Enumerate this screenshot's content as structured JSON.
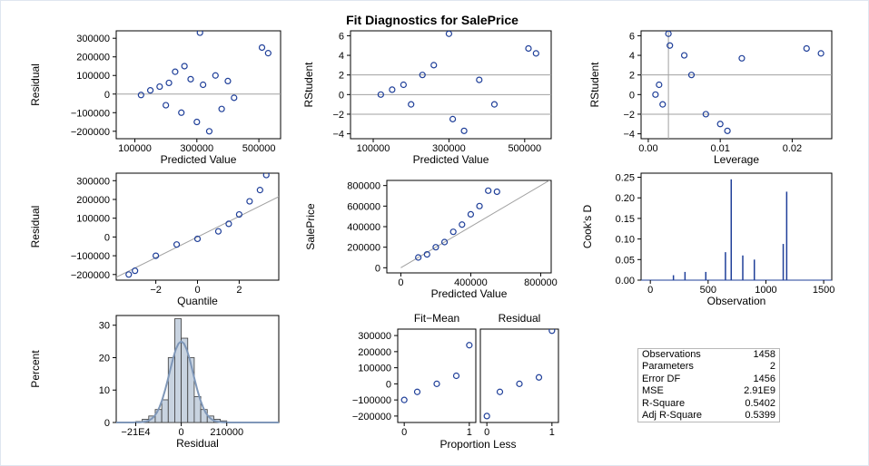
{
  "title": "Fit Diagnostics for SalePrice",
  "colors": {
    "marker": "#1f3f99",
    "ref": "#a0a0a0",
    "hist": "#c8d3e0",
    "curve": "#7f97b8"
  },
  "panels": {
    "p1": {
      "ylabel": "Residual",
      "xlabel": "Predicted Value",
      "xticks": [
        "100000",
        "300000",
        "500000"
      ],
      "yticks": [
        "300000",
        "200000",
        "100000",
        "0",
        "−100000",
        "−200000"
      ]
    },
    "p2": {
      "ylabel": "RStudent",
      "xlabel": "Predicted Value",
      "xticks": [
        "100000",
        "300000",
        "500000"
      ],
      "yticks": [
        "6",
        "4",
        "2",
        "0",
        "−2",
        "−4"
      ]
    },
    "p3": {
      "ylabel": "RStudent",
      "xlabel": "Leverage",
      "xticks": [
        "0.00",
        "0.01",
        "0.02"
      ],
      "yticks": [
        "6",
        "4",
        "2",
        "0",
        "−2",
        "−4"
      ]
    },
    "p4": {
      "ylabel": "Residual",
      "xlabel": "Quantile",
      "xticks": [
        "−2",
        "0",
        "2"
      ],
      "yticks": [
        "300000",
        "200000",
        "100000",
        "0",
        "−100000",
        "−200000"
      ]
    },
    "p5": {
      "ylabel": "SalePrice",
      "xlabel": "Predicted Value",
      "xticks": [
        "0",
        "400000",
        "800000"
      ],
      "yticks": [
        "800000",
        "600000",
        "400000",
        "200000",
        "0"
      ]
    },
    "p6": {
      "ylabel": "Cook's D",
      "xlabel": "Observation",
      "xticks": [
        "0",
        "500",
        "1000",
        "1500"
      ],
      "yticks": [
        "0.25",
        "0.20",
        "0.15",
        "0.10",
        "0.05",
        "0.00"
      ]
    },
    "p7": {
      "ylabel": "Percent",
      "xlabel": "Residual",
      "xticks": [
        "−21E4",
        "0",
        "210000"
      ],
      "yticks": [
        "30",
        "20",
        "10",
        "0"
      ]
    },
    "p8": {
      "xlabel": "Proportion Less",
      "label_left": "Fit−Mean",
      "label_right": "Residual",
      "xticks": [
        "0",
        "1"
      ],
      "yticks": [
        "300000",
        "200000",
        "100000",
        "0",
        "−100000",
        "−200000"
      ]
    }
  },
  "stats": [
    {
      "label": "Observations",
      "value": "1458"
    },
    {
      "label": "Parameters",
      "value": "2"
    },
    {
      "label": "Error DF",
      "value": "1456"
    },
    {
      "label": "MSE",
      "value": "2.91E9"
    },
    {
      "label": "R-Square",
      "value": "0.5402"
    },
    {
      "label": "Adj R-Square",
      "value": "0.5399"
    }
  ],
  "chart_data": [
    {
      "type": "scatter",
      "xlabel": "Predicted Value",
      "ylabel": "Residual",
      "xlim": [
        40000,
        570000
      ],
      "ylim": [
        -240000,
        340000
      ],
      "ref_y": 0,
      "points": [
        [
          120000,
          -5000
        ],
        [
          150000,
          20000
        ],
        [
          180000,
          40000
        ],
        [
          200000,
          -60000
        ],
        [
          210000,
          60000
        ],
        [
          230000,
          120000
        ],
        [
          250000,
          -100000
        ],
        [
          260000,
          150000
        ],
        [
          280000,
          80000
        ],
        [
          300000,
          -150000
        ],
        [
          310000,
          330000
        ],
        [
          320000,
          50000
        ],
        [
          340000,
          -200000
        ],
        [
          360000,
          100000
        ],
        [
          380000,
          -80000
        ],
        [
          400000,
          70000
        ],
        [
          420000,
          -20000
        ],
        [
          510000,
          250000
        ],
        [
          530000,
          220000
        ]
      ]
    },
    {
      "type": "scatter",
      "xlabel": "Predicted Value",
      "ylabel": "RStudent",
      "xlim": [
        40000,
        570000
      ],
      "ylim": [
        -4.5,
        6.5
      ],
      "ref_y": [
        -2,
        0,
        2
      ],
      "points": [
        [
          120000,
          0
        ],
        [
          150000,
          0.5
        ],
        [
          180000,
          1
        ],
        [
          200000,
          -1
        ],
        [
          230000,
          2
        ],
        [
          260000,
          3
        ],
        [
          300000,
          6.2
        ],
        [
          310000,
          -2.5
        ],
        [
          340000,
          -3.7
        ],
        [
          380000,
          1.5
        ],
        [
          420000,
          -1
        ],
        [
          510000,
          4.7
        ],
        [
          530000,
          4.2
        ]
      ]
    },
    {
      "type": "scatter",
      "xlabel": "Leverage",
      "ylabel": "RStudent",
      "xlim": [
        -0.001,
        0.0255
      ],
      "ylim": [
        -4.5,
        6.5
      ],
      "ref_y": [
        -2,
        2
      ],
      "ref_x": 0.0028,
      "points": [
        [
          0.001,
          0
        ],
        [
          0.0015,
          1
        ],
        [
          0.002,
          -1
        ],
        [
          0.0028,
          6.2
        ],
        [
          0.003,
          5
        ],
        [
          0.005,
          4
        ],
        [
          0.006,
          2
        ],
        [
          0.008,
          -2
        ],
        [
          0.01,
          -3
        ],
        [
          0.011,
          -3.7
        ],
        [
          0.013,
          3.7
        ],
        [
          0.022,
          4.7
        ],
        [
          0.024,
          4.2
        ]
      ]
    },
    {
      "type": "scatter",
      "xlabel": "Quantile",
      "ylabel": "Residual",
      "xlim": [
        -3.9,
        3.9
      ],
      "ylim": [
        -230000,
        340000
      ],
      "ref_line": [
        [
          -4,
          -220000
        ],
        [
          4,
          220000
        ]
      ],
      "points": [
        [
          -3.3,
          -200000
        ],
        [
          -3,
          -180000
        ],
        [
          -2,
          -100000
        ],
        [
          -1,
          -40000
        ],
        [
          0,
          -10000
        ],
        [
          1,
          30000
        ],
        [
          1.5,
          70000
        ],
        [
          2,
          120000
        ],
        [
          2.5,
          190000
        ],
        [
          3,
          250000
        ],
        [
          3.3,
          330000
        ]
      ]
    },
    {
      "type": "scatter",
      "xlabel": "Predicted Value",
      "ylabel": "SalePrice",
      "xlim": [
        -80000,
        860000
      ],
      "ylim": [
        -50000,
        850000
      ],
      "ref_line": [
        [
          0,
          0
        ],
        [
          850000,
          850000
        ]
      ],
      "points": [
        [
          100000,
          100000
        ],
        [
          150000,
          130000
        ],
        [
          200000,
          200000
        ],
        [
          250000,
          250000
        ],
        [
          300000,
          350000
        ],
        [
          350000,
          420000
        ],
        [
          400000,
          520000
        ],
        [
          450000,
          600000
        ],
        [
          500000,
          750000
        ],
        [
          550000,
          740000
        ]
      ]
    },
    {
      "type": "needle",
      "xlabel": "Observation",
      "ylabel": "Cook's D",
      "xlim": [
        -80,
        1570
      ],
      "ylim": [
        0,
        0.26
      ],
      "points": [
        [
          200,
          0.012
        ],
        [
          300,
          0.02
        ],
        [
          480,
          0.02
        ],
        [
          650,
          0.068
        ],
        [
          700,
          0.245
        ],
        [
          800,
          0.06
        ],
        [
          900,
          0.05
        ],
        [
          1150,
          0.088
        ],
        [
          1180,
          0.215
        ]
      ]
    },
    {
      "type": "histogram",
      "xlabel": "Residual",
      "ylabel": "Percent",
      "xlim": [
        -300000,
        450000
      ],
      "ylim": [
        0,
        33
      ],
      "bins": [
        [
          -210000,
          -180000,
          0.3
        ],
        [
          -180000,
          -150000,
          1
        ],
        [
          -150000,
          -120000,
          2
        ],
        [
          -120000,
          -90000,
          4
        ],
        [
          -90000,
          -60000,
          7
        ],
        [
          -60000,
          -30000,
          20
        ],
        [
          -30000,
          0,
          32
        ],
        [
          0,
          30000,
          26
        ],
        [
          30000,
          60000,
          20
        ],
        [
          60000,
          90000,
          8
        ],
        [
          90000,
          120000,
          4
        ],
        [
          120000,
          150000,
          2
        ],
        [
          150000,
          180000,
          1
        ],
        [
          180000,
          210000,
          0.5
        ]
      ]
    },
    {
      "type": "scatter",
      "series": [
        {
          "name": "Fit−Mean",
          "points": [
            [
              0,
              -100000
            ],
            [
              0.2,
              -50000
            ],
            [
              0.5,
              0
            ],
            [
              0.8,
              50000
            ],
            [
              1,
              240000
            ]
          ]
        },
        {
          "name": "Residual",
          "points": [
            [
              0,
              -200000
            ],
            [
              0.2,
              -50000
            ],
            [
              0.5,
              0
            ],
            [
              0.8,
              40000
            ],
            [
              1,
              330000
            ]
          ]
        }
      ],
      "xlabel": "Proportion Less",
      "ylim": [
        -240000,
        340000
      ]
    }
  ]
}
